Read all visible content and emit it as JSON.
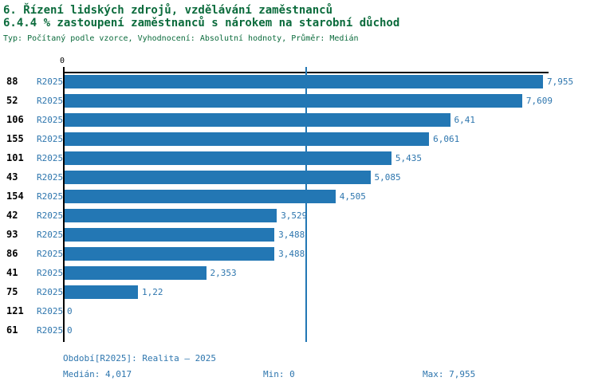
{
  "title": "6. Řízení lidských zdrojů, vzdělávání zaměstnanců",
  "subtitle": "6.4.4 % zastoupení zaměstnanců s nárokem na starobní důchod",
  "meta": "Typ: Počítaný podle vzorce, Vyhodnocení: Absolutní hodnoty, Průměr: Medián",
  "colors": {
    "bar_blue": "#2377b4",
    "text_blue": "#2e76ae",
    "title_green": "#0b6b3c",
    "axis_black": "#000000",
    "background": "#ffffff"
  },
  "chart_data": {
    "type": "bar",
    "orientation": "horizontal",
    "axis_zero_label": "0",
    "max_value": 7.955,
    "median_value": 4.017,
    "value_axis_range": [
      0,
      7.955
    ],
    "grid": false,
    "categories": [
      "88",
      "52",
      "106",
      "155",
      "101",
      "43",
      "154",
      "42",
      "93",
      "86",
      "41",
      "75",
      "121",
      "61"
    ],
    "rows": [
      {
        "id": "88",
        "period": "R2025",
        "value": 7.955,
        "label": "7,955"
      },
      {
        "id": "52",
        "period": "R2025",
        "value": 7.609,
        "label": "7,609"
      },
      {
        "id": "106",
        "period": "R2025",
        "value": 6.41,
        "label": "6,41"
      },
      {
        "id": "155",
        "period": "R2025",
        "value": 6.061,
        "label": "6,061"
      },
      {
        "id": "101",
        "period": "R2025",
        "value": 5.435,
        "label": "5,435"
      },
      {
        "id": "43",
        "period": "R2025",
        "value": 5.085,
        "label": "5,085"
      },
      {
        "id": "154",
        "period": "R2025",
        "value": 4.505,
        "label": "4,505"
      },
      {
        "id": "42",
        "period": "R2025",
        "value": 3.529,
        "label": "3,529"
      },
      {
        "id": "93",
        "period": "R2025",
        "value": 3.488,
        "label": "3,488"
      },
      {
        "id": "86",
        "period": "R2025",
        "value": 3.488,
        "label": "3,488"
      },
      {
        "id": "41",
        "period": "R2025",
        "value": 2.353,
        "label": "2,353"
      },
      {
        "id": "75",
        "period": "R2025",
        "value": 1.22,
        "label": "1,22"
      },
      {
        "id": "121",
        "period": "R2025",
        "value": 0,
        "label": "0"
      },
      {
        "id": "61",
        "period": "R2025",
        "value": 0,
        "label": "0"
      }
    ],
    "footer": {
      "period_line": "Období[R2025]: Realita – 2025",
      "median": "Medián: 4,017",
      "min": "Min: 0",
      "max": "Max: 7,955"
    }
  }
}
